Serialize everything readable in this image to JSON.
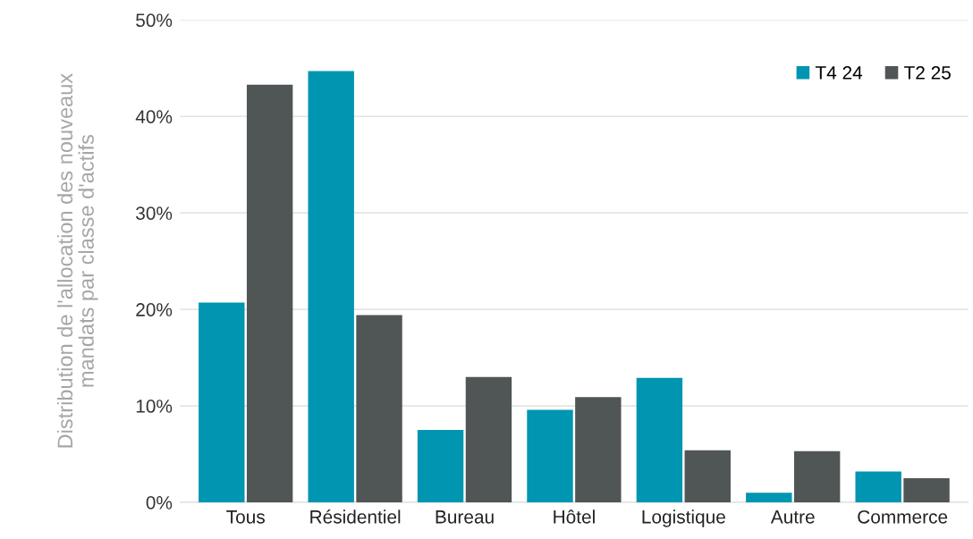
{
  "chart_data": {
    "type": "bar",
    "ylabel": "Distribution de l'allocation des nouveaux\nmandats par classe d'actifs",
    "categories": [
      "Tous",
      "Résidentiel",
      "Bureau",
      "Hôtel",
      "Logistique",
      "Autre",
      "Commerce"
    ],
    "series": [
      {
        "name": "T4 24",
        "color": "#0095b0",
        "values": [
          20.7,
          44.7,
          7.5,
          9.6,
          12.9,
          1.0,
          3.2
        ]
      },
      {
        "name": "T2 25",
        "color": "#505556",
        "values": [
          43.3,
          19.4,
          13.0,
          10.9,
          5.4,
          5.3,
          2.5
        ]
      }
    ],
    "ylim": [
      0,
      50
    ],
    "yticks": [
      {
        "value": 0,
        "label": "0%"
      },
      {
        "value": 10,
        "label": "10%"
      },
      {
        "value": 20,
        "label": "20%"
      },
      {
        "value": 30,
        "label": "30%"
      },
      {
        "value": 40,
        "label": "40%"
      },
      {
        "value": 50,
        "label": "50%"
      }
    ],
    "grid": "y",
    "legend": "top right"
  }
}
